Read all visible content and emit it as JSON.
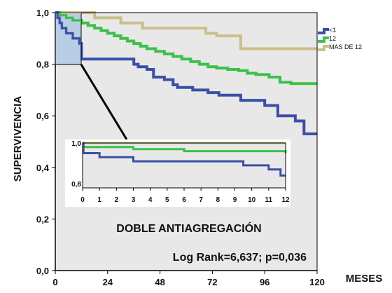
{
  "chart_data": {
    "type": "line",
    "subtype": "kaplan-meier-step",
    "ylabel": "SUPERVIVENCIA",
    "xlabel": "MESES",
    "xlim": [
      0,
      120
    ],
    "ylim": [
      0.0,
      1.0
    ],
    "x_ticks": [
      "0",
      "24",
      "48",
      "72",
      "96",
      "120"
    ],
    "y_ticks": [
      "0,0",
      "0,2",
      "0,4",
      "0,6",
      "0,8",
      "1,0"
    ],
    "grid": false,
    "legend_position": "right",
    "background": "#e8e8e8",
    "series": [
      {
        "name": "<1",
        "color": "#3a4fa8",
        "points": [
          [
            0,
            1.0
          ],
          [
            1,
            0.98
          ],
          [
            2,
            0.96
          ],
          [
            3,
            0.94
          ],
          [
            5,
            0.92
          ],
          [
            8,
            0.9
          ],
          [
            11,
            0.88
          ],
          [
            12,
            0.82
          ],
          [
            35,
            0.82
          ],
          [
            36,
            0.8
          ],
          [
            38,
            0.79
          ],
          [
            42,
            0.78
          ],
          [
            45,
            0.75
          ],
          [
            50,
            0.74
          ],
          [
            54,
            0.72
          ],
          [
            56,
            0.71
          ],
          [
            63,
            0.7
          ],
          [
            70,
            0.69
          ],
          [
            75,
            0.68
          ],
          [
            85,
            0.66
          ],
          [
            96,
            0.64
          ],
          [
            102,
            0.6
          ],
          [
            110,
            0.58
          ],
          [
            114,
            0.53
          ],
          [
            120,
            0.53
          ]
        ]
      },
      {
        "name": "12",
        "color": "#3ec04a",
        "points": [
          [
            0,
            1.0
          ],
          [
            2,
            0.99
          ],
          [
            5,
            0.98
          ],
          [
            8,
            0.97
          ],
          [
            12,
            0.96
          ],
          [
            15,
            0.95
          ],
          [
            18,
            0.94
          ],
          [
            21,
            0.93
          ],
          [
            24,
            0.92
          ],
          [
            27,
            0.91
          ],
          [
            30,
            0.9
          ],
          [
            33,
            0.89
          ],
          [
            36,
            0.88
          ],
          [
            39,
            0.87
          ],
          [
            42,
            0.86
          ],
          [
            46,
            0.85
          ],
          [
            50,
            0.84
          ],
          [
            54,
            0.83
          ],
          [
            58,
            0.82
          ],
          [
            62,
            0.81
          ],
          [
            66,
            0.8
          ],
          [
            70,
            0.79
          ],
          [
            74,
            0.785
          ],
          [
            79,
            0.78
          ],
          [
            84,
            0.775
          ],
          [
            88,
            0.765
          ],
          [
            92,
            0.76
          ],
          [
            98,
            0.75
          ],
          [
            103,
            0.73
          ],
          [
            108,
            0.725
          ],
          [
            120,
            0.725
          ]
        ]
      },
      {
        "name": "MAS DE 12",
        "color": "#c9c08a",
        "points": [
          [
            0,
            1.0
          ],
          [
            17,
            1.0
          ],
          [
            18,
            0.98
          ],
          [
            30,
            0.96
          ],
          [
            40,
            0.94
          ],
          [
            68,
            0.94
          ],
          [
            69,
            0.92
          ],
          [
            74,
            0.91
          ],
          [
            84,
            0.91
          ],
          [
            85,
            0.86
          ],
          [
            120,
            0.86
          ]
        ]
      }
    ],
    "inset": {
      "xlim": [
        0,
        12
      ],
      "ylim": [
        0.8,
        1.0
      ],
      "x_ticks": [
        "0",
        "1",
        "2",
        "3",
        "4",
        "5",
        "6",
        "7",
        "8",
        "9",
        "10",
        "11",
        "12"
      ],
      "y_ticks": [
        "0,8",
        "1,0"
      ],
      "series": [
        {
          "name": "<1",
          "points": [
            [
              0,
              1.0
            ],
            [
              0.05,
              0.95
            ],
            [
              1,
              0.93
            ],
            [
              3,
              0.91
            ],
            [
              9.5,
              0.89
            ],
            [
              10,
              0.89
            ],
            [
              11,
              0.87
            ],
            [
              11.7,
              0.84
            ],
            [
              12,
              0.84
            ]
          ]
        },
        {
          "name": "12",
          "points": [
            [
              0,
              0.98
            ],
            [
              3,
              0.97
            ],
            [
              6,
              0.96
            ],
            [
              12,
              0.95
            ]
          ]
        },
        {
          "name": "MAS DE 12",
          "points": [
            [
              0,
              1.0
            ],
            [
              12,
              1.0
            ]
          ]
        }
      ]
    },
    "annotations": [
      "DOBLE ANTIAGREGACIÓN",
      "Log Rank=6,637; p=0,036"
    ]
  }
}
